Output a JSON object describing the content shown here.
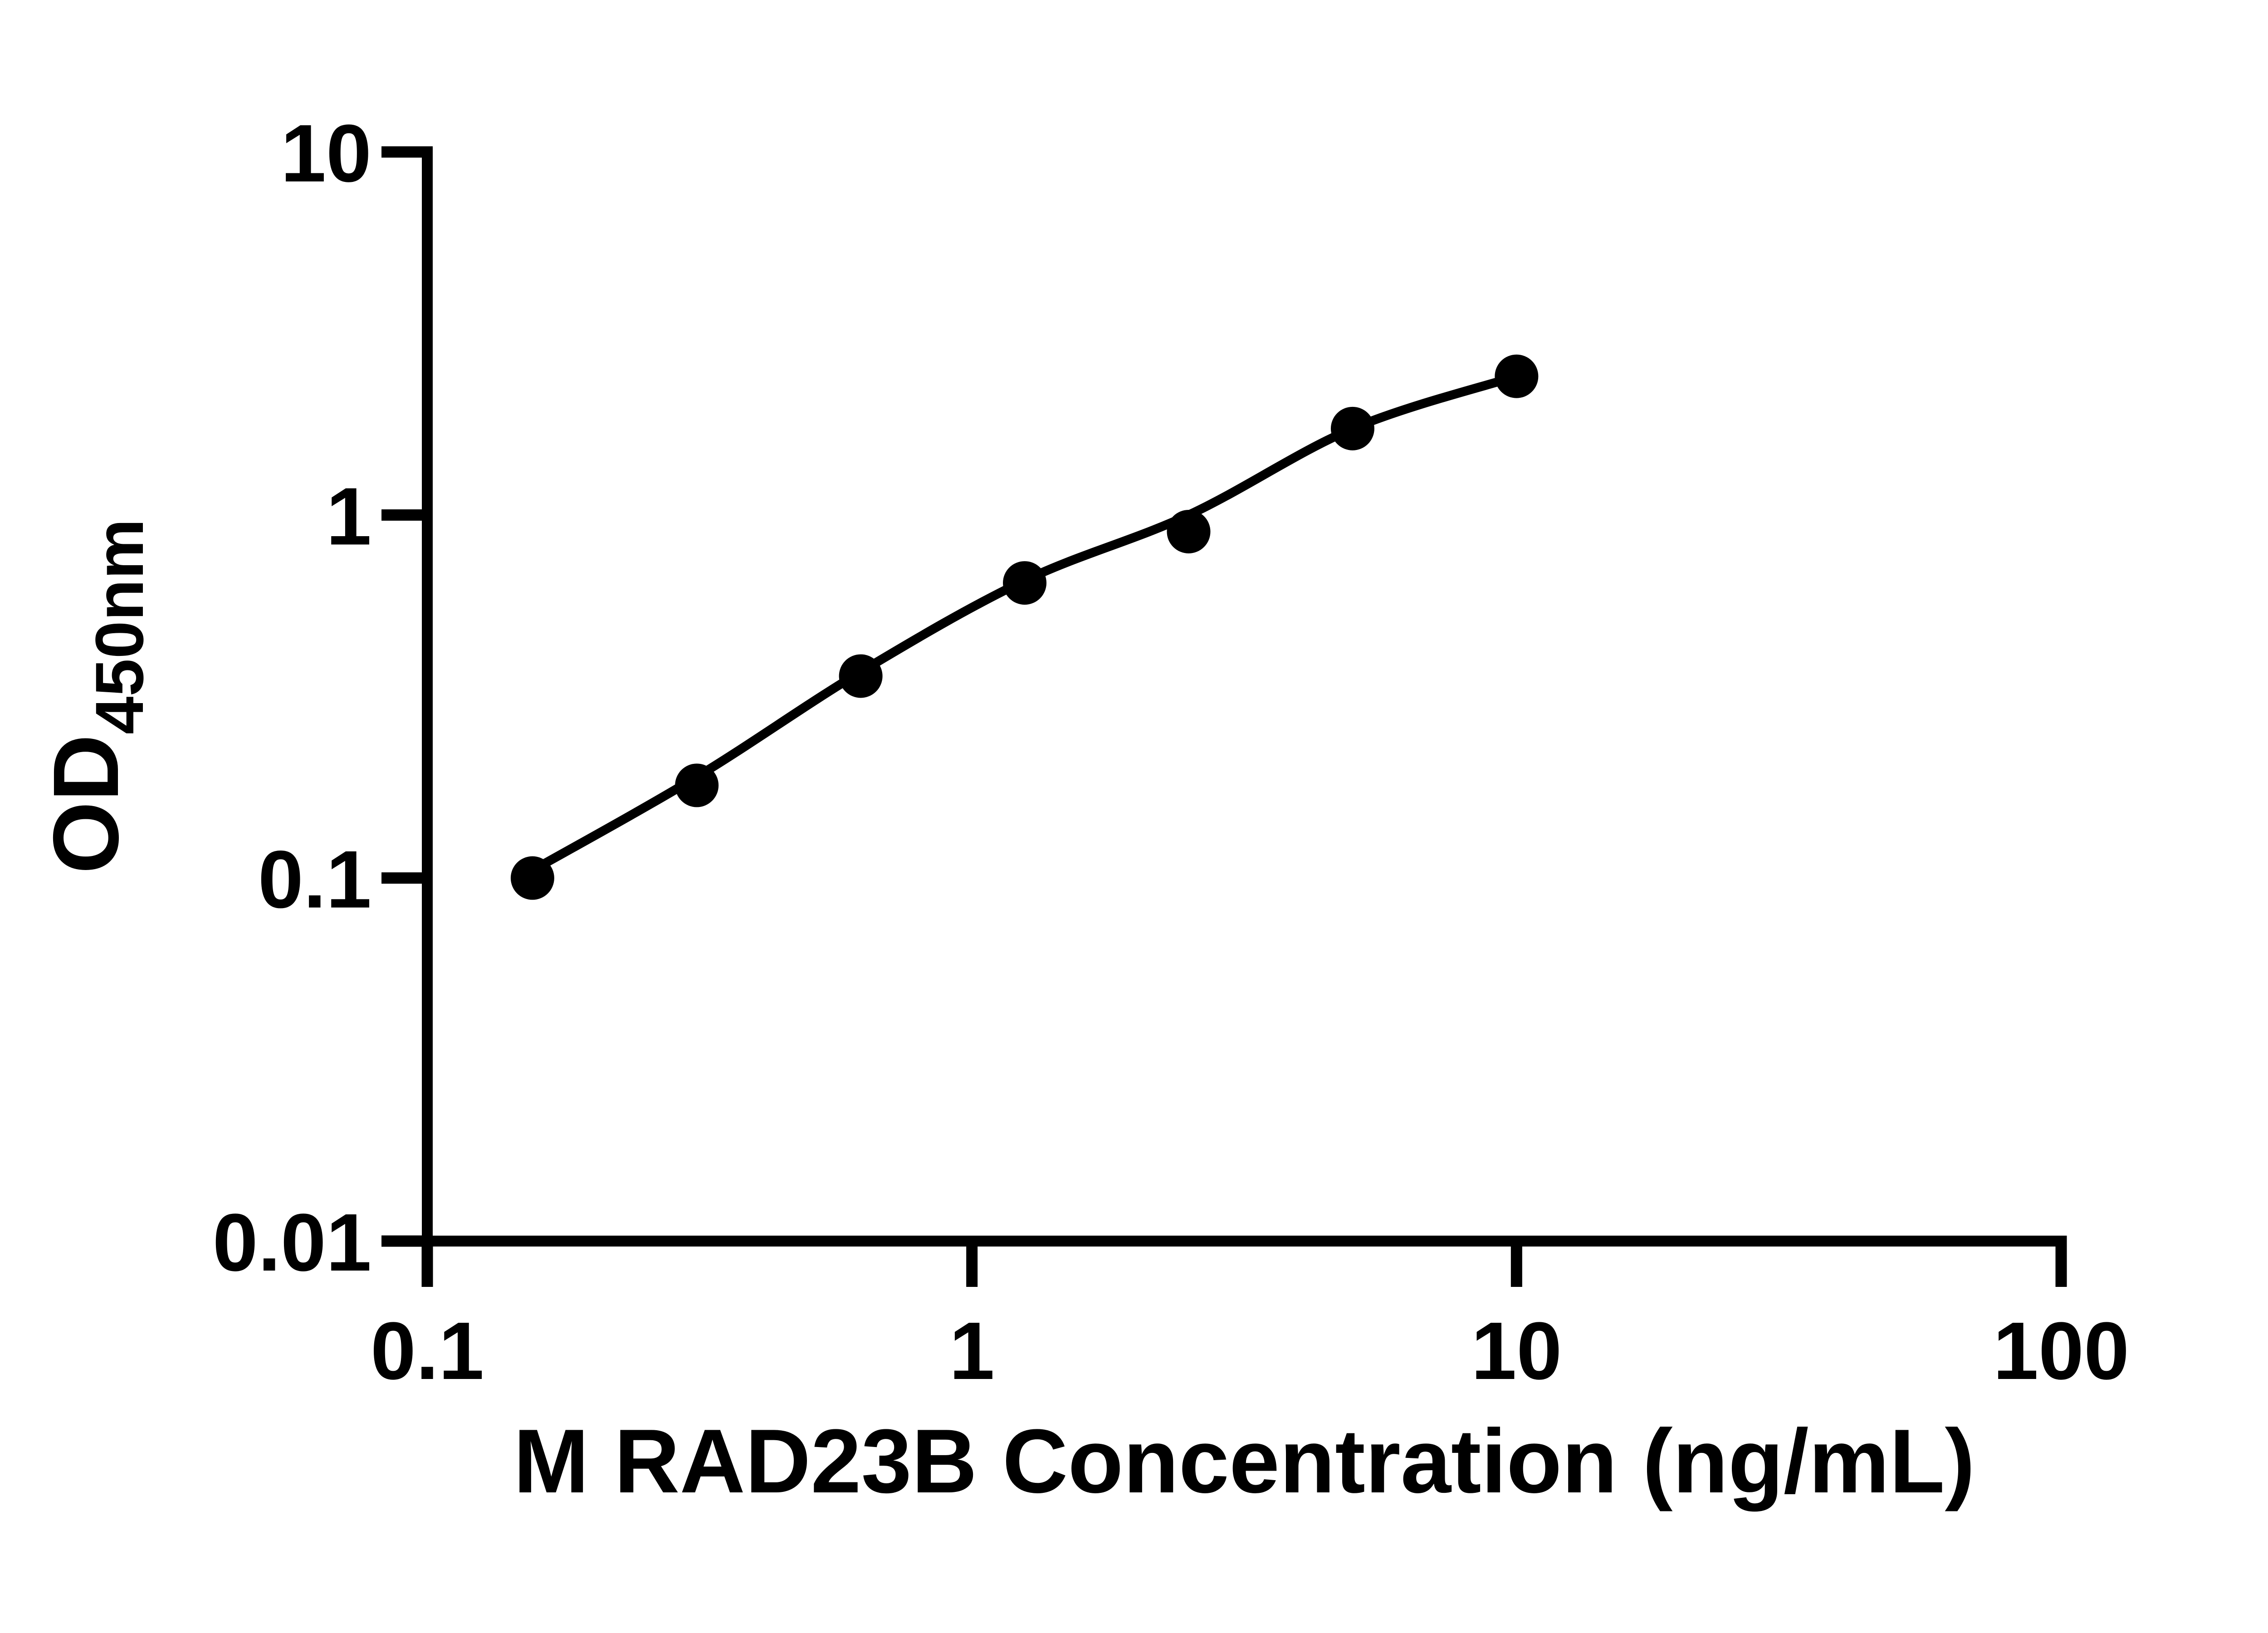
{
  "figure": {
    "background_color": "#ffffff",
    "ink_color": "#000000"
  },
  "chart_data": {
    "type": "scatter",
    "title": "",
    "xlabel": "M RAD23B Concentration (ng/mL)",
    "ylabel": "OD",
    "ylabel_subscript": "450nm",
    "x_scale": "log",
    "y_scale": "log",
    "xlim": [
      0.1,
      100
    ],
    "ylim": [
      0.01,
      10
    ],
    "grid": false,
    "legend": null,
    "x_ticks": [
      {
        "value": 0.1,
        "label": "0.1"
      },
      {
        "value": 1,
        "label": "1"
      },
      {
        "value": 10,
        "label": "10"
      },
      {
        "value": 100,
        "label": "100"
      }
    ],
    "y_ticks": [
      {
        "value": 0.01,
        "label": "0.01"
      },
      {
        "value": 0.1,
        "label": "0.1"
      },
      {
        "value": 1,
        "label": "1"
      },
      {
        "value": 10,
        "label": "10"
      }
    ],
    "series": [
      {
        "name": "standard-data-points",
        "type": "scatter",
        "points": [
          [
            0.156,
            0.1
          ],
          [
            0.3125,
            0.18
          ],
          [
            0.625,
            0.36
          ],
          [
            1.25,
            0.65
          ],
          [
            2.5,
            0.9
          ],
          [
            5,
            1.73
          ],
          [
            10,
            2.41
          ]
        ]
      },
      {
        "name": "fitted-curve",
        "type": "line",
        "points": [
          [
            0.156,
            0.105
          ],
          [
            0.3125,
            0.19
          ],
          [
            0.625,
            0.37
          ],
          [
            1.25,
            0.66
          ],
          [
            2.5,
            1.0
          ],
          [
            5,
            1.73
          ],
          [
            10,
            2.41
          ]
        ]
      }
    ]
  }
}
